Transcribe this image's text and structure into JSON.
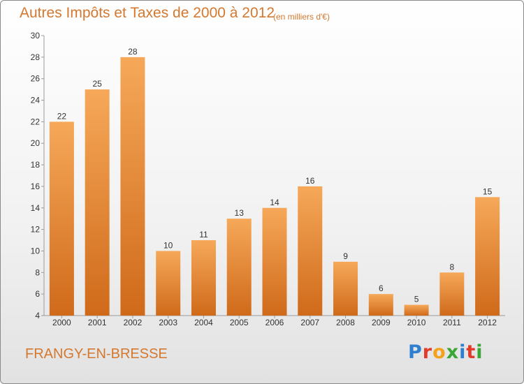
{
  "title": "Autres Impôts et Taxes de 2000 à 2012",
  "subtitle": "(en milliers d'€)",
  "commune": "FRANGY-EN-BRESSE",
  "brand": {
    "letters": [
      "P",
      "r",
      "o",
      "x",
      "i",
      "t",
      "i"
    ],
    "colors": [
      "#2f7fd0",
      "#e23b2a",
      "#f2a21b",
      "#3aa635",
      "#2f7fd0",
      "#e23b2a",
      "#3aa635"
    ]
  },
  "colors": {
    "bar_light": "#f6a859",
    "bar_dark": "#cf6a1a",
    "accent": "#d4782f"
  },
  "chart_data": {
    "type": "bar",
    "title": "Autres Impôts et Taxes de 2000 à 2012",
    "subtitle": "(en milliers d'€)",
    "categories": [
      "2000",
      "2001",
      "2002",
      "2003",
      "2004",
      "2005",
      "2006",
      "2007",
      "2008",
      "2009",
      "2010",
      "2011",
      "2012"
    ],
    "values": [
      22,
      25,
      28,
      10,
      11,
      13,
      14,
      16,
      9,
      6,
      5,
      8,
      15
    ],
    "ylim": [
      4,
      30
    ],
    "yticks": [
      4,
      6,
      8,
      10,
      12,
      14,
      16,
      18,
      20,
      22,
      24,
      26,
      28,
      30
    ],
    "grid": false,
    "legend": "none"
  }
}
